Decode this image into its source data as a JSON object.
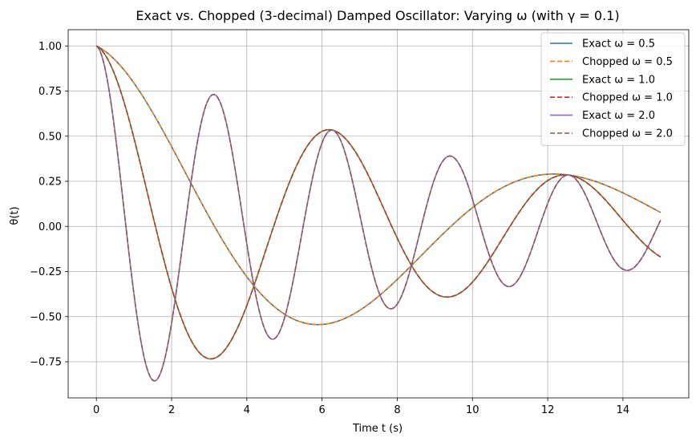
{
  "chart_data": {
    "type": "line",
    "title": "Exact vs. Chopped (3-decimal) Damped Oscillator: Varying ω (with γ = 0.1)",
    "xlabel": "Time t (s)",
    "ylabel": "θ(t)",
    "xlim": [
      -0.75,
      15.75
    ],
    "ylim": [
      -0.95,
      1.09
    ],
    "xticks": [
      0,
      2,
      4,
      6,
      8,
      10,
      12,
      14
    ],
    "xtick_labels": [
      "0",
      "2",
      "4",
      "6",
      "8",
      "10",
      "12",
      "14"
    ],
    "yticks": [
      -0.75,
      -0.5,
      -0.25,
      0.0,
      0.25,
      0.5,
      0.75,
      1.0
    ],
    "ytick_labels": [
      "−0.75",
      "−0.50",
      "−0.25",
      "0.00",
      "0.25",
      "0.50",
      "0.75",
      "1.00"
    ],
    "grid": true,
    "legend_position": "top-right",
    "t_range": [
      0,
      15
    ],
    "damping_gamma": 0.1,
    "series": [
      {
        "name": "Exact ω = 0.5",
        "omega": 0.5,
        "color": "#1f77b4",
        "style": "solid"
      },
      {
        "name": "Chopped ω = 0.5",
        "omega": 0.5,
        "color": "#ff7f0e",
        "style": "dashed"
      },
      {
        "name": "Exact ω = 1.0",
        "omega": 1.0,
        "color": "#2ca02c",
        "style": "solid"
      },
      {
        "name": "Chopped ω = 1.0",
        "omega": 1.0,
        "color": "#d62728",
        "style": "dashed"
      },
      {
        "name": "Exact ω = 2.0",
        "omega": 2.0,
        "color": "#9467bd",
        "style": "solid"
      },
      {
        "name": "Chopped ω = 2.0",
        "omega": 2.0,
        "color": "#8c564b",
        "style": "dashed"
      }
    ]
  }
}
